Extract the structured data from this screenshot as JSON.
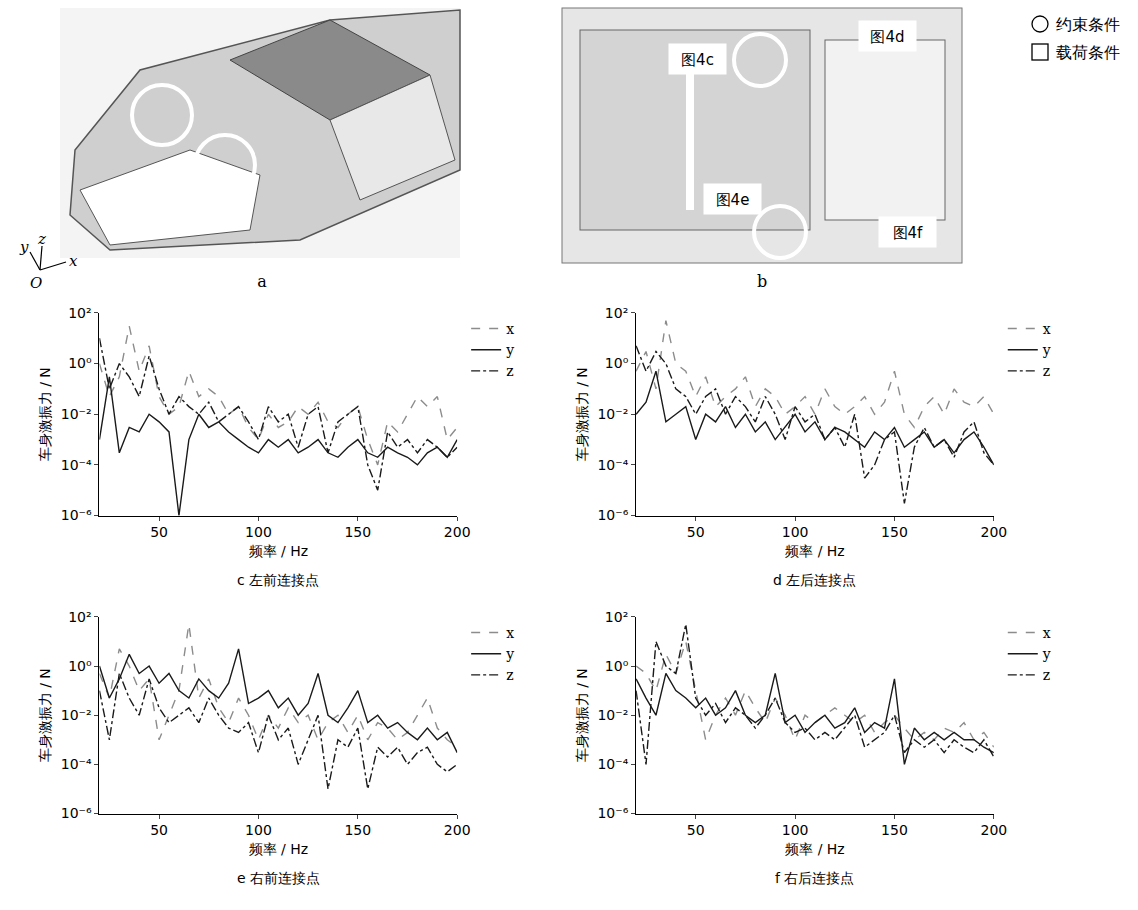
{
  "figure": {
    "panel_a": {
      "label": "a",
      "axes": [
        "y",
        "z",
        "x",
        "O"
      ]
    },
    "panel_b": {
      "label": "b",
      "boxes": [
        "图4c",
        "图4d",
        "图4e",
        "图4f"
      ],
      "legend": [
        {
          "marker": "circle",
          "text": "约束条件"
        },
        {
          "marker": "square",
          "text": "载荷条件"
        }
      ]
    }
  },
  "chart_data": [
    {
      "type": "line",
      "title": "c 左前连接点",
      "x_label": "频率 / Hz",
      "y_label": "车身激振力 / N",
      "log": "y",
      "grid": false,
      "legend": "right",
      "xlim": [
        20,
        200
      ],
      "xticks": [
        50,
        100,
        150,
        200
      ],
      "ylim": [
        1e-06,
        100
      ],
      "yticks": [
        {
          "value": 1e-06,
          "label": "10⁻⁶"
        },
        {
          "value": 0.0001,
          "label": "10⁻⁴"
        },
        {
          "value": 0.01,
          "label": "10⁻²"
        },
        {
          "value": 1,
          "label": "10⁰"
        },
        {
          "value": 100,
          "label": "10²"
        }
      ],
      "x": [
        20,
        25,
        30,
        35,
        40,
        45,
        50,
        55,
        60,
        65,
        70,
        75,
        80,
        85,
        90,
        95,
        100,
        105,
        110,
        115,
        120,
        125,
        130,
        135,
        140,
        145,
        150,
        155,
        160,
        165,
        170,
        175,
        180,
        185,
        190,
        195,
        200
      ],
      "series": [
        {
          "name": "x",
          "color": "#8c8c8c",
          "line_style": "dashed",
          "values": [
            1,
            0.05,
            0.3,
            30,
            0.5,
            5,
            0.05,
            0.01,
            0.02,
            0.5,
            0.05,
            0.1,
            0.05,
            0.01,
            0.02,
            0.003,
            0.001,
            0.01,
            0.003,
            0.005,
            0.02,
            0.01,
            0.03,
            0.005,
            0.003,
            0.01,
            0.02,
            0.001,
            0.0001,
            0.005,
            0.002,
            0.01,
            0.05,
            0.02,
            0.05,
            0.001,
            0.003
          ]
        },
        {
          "name": "y",
          "color": "#1a1a1a",
          "line_style": "solid",
          "values": [
            0.001,
            0.3,
            0.0003,
            0.003,
            0.002,
            0.01,
            0.005,
            0.002,
            1e-06,
            0.001,
            0.01,
            0.003,
            0.005,
            0.002,
            0.001,
            0.0005,
            0.0003,
            0.001,
            0.0005,
            0.001,
            0.0003,
            0.0005,
            0.001,
            0.0003,
            0.0002,
            0.0005,
            0.001,
            0.0003,
            0.0002,
            0.0005,
            0.0003,
            0.0002,
            0.0001,
            0.0003,
            0.0005,
            0.0002,
            0.001
          ]
        },
        {
          "name": "z",
          "color": "#1a1a1a",
          "line_style": "dashdot",
          "values": [
            10,
            0.1,
            1,
            0.3,
            0.05,
            2,
            0.1,
            0.01,
            0.05,
            0.02,
            0.01,
            0.03,
            0.005,
            0.01,
            0.02,
            0.005,
            0.001,
            0.02,
            0.005,
            0.01,
            0.0005,
            0.01,
            0.02,
            0.0003,
            0.005,
            0.01,
            0.02,
            0.0001,
            1e-05,
            0.002,
            0.0005,
            0.001,
            0.0003,
            0.001,
            0.0005,
            0.0002,
            0.0005
          ]
        }
      ]
    },
    {
      "type": "line",
      "title": "d 左后连接点",
      "x_label": "频率 / Hz",
      "y_label": "车身激振力 / N",
      "log": "y",
      "grid": false,
      "legend": "right",
      "xlim": [
        20,
        200
      ],
      "xticks": [
        50,
        100,
        150,
        200
      ],
      "ylim": [
        1e-06,
        100
      ],
      "yticks": [
        {
          "value": 1e-06,
          "label": "10⁻⁶"
        },
        {
          "value": 0.0001,
          "label": "10⁻⁴"
        },
        {
          "value": 0.01,
          "label": "10⁻²"
        },
        {
          "value": 1,
          "label": "10⁰"
        },
        {
          "value": 100,
          "label": "10²"
        }
      ],
      "x": [
        20,
        25,
        30,
        35,
        40,
        45,
        50,
        55,
        60,
        65,
        70,
        75,
        80,
        85,
        90,
        95,
        100,
        105,
        110,
        115,
        120,
        125,
        130,
        135,
        140,
        145,
        150,
        155,
        160,
        165,
        170,
        175,
        180,
        185,
        190,
        195,
        200
      ],
      "series": [
        {
          "name": "x",
          "color": "#8c8c8c",
          "line_style": "dashed",
          "values": [
            0.5,
            3,
            0.1,
            50,
            1,
            0.5,
            0.05,
            0.3,
            0.02,
            0.05,
            0.1,
            0.3,
            0.02,
            0.1,
            0.05,
            0.01,
            0.02,
            0.05,
            0.01,
            0.1,
            0.02,
            0.01,
            0.02,
            0.05,
            0.01,
            0.03,
            0.5,
            0.01,
            0.003,
            0.02,
            0.05,
            0.01,
            0.1,
            0.03,
            0.02,
            0.05,
            0.01
          ]
        },
        {
          "name": "y",
          "color": "#1a1a1a",
          "line_style": "solid",
          "values": [
            0.01,
            0.03,
            0.5,
            0.005,
            0.01,
            0.02,
            0.001,
            0.01,
            0.005,
            0.02,
            0.003,
            0.01,
            0.002,
            0.005,
            0.001,
            0.003,
            0.01,
            0.002,
            0.005,
            0.001,
            0.003,
            0.002,
            0.001,
            0.0005,
            0.002,
            0.001,
            0.003,
            0.0005,
            0.001,
            0.002,
            0.0005,
            0.001,
            0.0003,
            0.001,
            0.002,
            0.0005,
            0.0001
          ]
        },
        {
          "name": "z",
          "color": "#1a1a1a",
          "line_style": "dashdot",
          "values": [
            5,
            0.5,
            3,
            1,
            0.1,
            0.05,
            0.01,
            0.05,
            0.1,
            0.01,
            0.05,
            0.02,
            0.005,
            0.05,
            0.01,
            0.001,
            0.02,
            0.005,
            0.01,
            0.001,
            0.003,
            0.0005,
            0.01,
            3e-05,
            0.0001,
            0.001,
            0.002,
            3e-06,
            0.0005,
            0.003,
            0.0005,
            0.001,
            0.0002,
            0.002,
            0.005,
            0.0003,
            0.0001
          ]
        }
      ]
    },
    {
      "type": "line",
      "title": "e 右前连接点",
      "x_label": "频率 / Hz",
      "y_label": "车身激振力 / N",
      "log": "y",
      "grid": false,
      "legend": "right",
      "xlim": [
        20,
        200
      ],
      "xticks": [
        50,
        100,
        150,
        200
      ],
      "ylim": [
        1e-06,
        100
      ],
      "yticks": [
        {
          "value": 1e-06,
          "label": "10⁻⁶"
        },
        {
          "value": 0.0001,
          "label": "10⁻⁴"
        },
        {
          "value": 0.01,
          "label": "10⁻²"
        },
        {
          "value": 1,
          "label": "10⁰"
        },
        {
          "value": 100,
          "label": "10²"
        }
      ],
      "x": [
        20,
        25,
        30,
        35,
        40,
        45,
        50,
        55,
        60,
        65,
        70,
        75,
        80,
        85,
        90,
        95,
        100,
        105,
        110,
        115,
        120,
        125,
        130,
        135,
        140,
        145,
        150,
        155,
        160,
        165,
        170,
        175,
        180,
        185,
        190,
        195,
        200
      ],
      "series": [
        {
          "name": "x",
          "color": "#8c8c8c",
          "line_style": "dashed",
          "values": [
            0.5,
            0.05,
            5,
            1,
            0.1,
            0.3,
            0.001,
            0.01,
            0.1,
            50,
            0.05,
            0.3,
            0.02,
            0.005,
            0.05,
            0.01,
            0.001,
            0.01,
            0.003,
            0.02,
            0.005,
            0.01,
            0.001,
            0.005,
            0.01,
            0.002,
            0.01,
            0.001,
            0.005,
            0.003,
            0.001,
            0.002,
            0.01,
            0.05,
            0.003,
            0.001,
            0.0005
          ]
        },
        {
          "name": "y",
          "color": "#1a1a1a",
          "line_style": "solid",
          "values": [
            1,
            0.05,
            0.3,
            3,
            0.5,
            1,
            0.2,
            0.5,
            0.1,
            0.05,
            0.3,
            0.1,
            0.05,
            0.2,
            5,
            0.03,
            0.05,
            0.1,
            0.02,
            0.05,
            0.01,
            0.03,
            0.5,
            0.01,
            0.005,
            0.02,
            0.1,
            0.005,
            0.01,
            0.003,
            0.005,
            0.002,
            0.001,
            0.003,
            0.001,
            0.002,
            0.0003
          ]
        },
        {
          "name": "z",
          "color": "#1a1a1a",
          "line_style": "dashdot",
          "values": [
            0.1,
            0.001,
            0.5,
            0.05,
            0.01,
            0.3,
            0.02,
            0.005,
            0.01,
            0.02,
            0.005,
            0.05,
            0.01,
            0.003,
            0.002,
            0.005,
            0.0003,
            0.01,
            0.001,
            0.003,
            0.0001,
            0.001,
            0.01,
            1e-05,
            0.001,
            0.0005,
            0.003,
            1e-05,
            0.0005,
            0.0002,
            0.0005,
            0.0001,
            0.0003,
            0.0005,
            0.0001,
            5e-05,
            0.0001
          ]
        }
      ]
    },
    {
      "type": "line",
      "title": "f 右后连接点",
      "x_label": "频率 / Hz",
      "y_label": "车身激振力 / N",
      "log": "y",
      "grid": false,
      "legend": "right",
      "xlim": [
        20,
        200
      ],
      "xticks": [
        50,
        100,
        150,
        200
      ],
      "ylim": [
        1e-06,
        100
      ],
      "yticks": [
        {
          "value": 1e-06,
          "label": "10⁻⁶"
        },
        {
          "value": 0.0001,
          "label": "10⁻⁴"
        },
        {
          "value": 0.01,
          "label": "10⁻²"
        },
        {
          "value": 1,
          "label": "10⁰"
        },
        {
          "value": 100,
          "label": "10²"
        }
      ],
      "x": [
        20,
        25,
        30,
        35,
        40,
        45,
        50,
        55,
        60,
        65,
        70,
        75,
        80,
        85,
        90,
        95,
        100,
        105,
        110,
        115,
        120,
        125,
        130,
        135,
        140,
        145,
        150,
        155,
        160,
        165,
        170,
        175,
        180,
        185,
        190,
        195,
        200
      ],
      "series": [
        {
          "name": "x",
          "color": "#8c8c8c",
          "line_style": "dashed",
          "values": [
            1,
            0.5,
            0.1,
            3,
            0.5,
            10,
            0.1,
            0.001,
            0.01,
            0.05,
            0.01,
            0.1,
            0.02,
            0.005,
            0.05,
            0.01,
            0.001,
            0.01,
            0.005,
            0.01,
            0.02,
            0.01,
            0.005,
            0.01,
            0.002,
            0.005,
            0.01,
            0.003,
            0.001,
            0.002,
            0.001,
            0.003,
            0.002,
            0.005,
            0.001,
            0.002,
            0.0005
          ]
        },
        {
          "name": "y",
          "color": "#1a1a1a",
          "line_style": "solid",
          "values": [
            0.3,
            0.05,
            0.01,
            0.5,
            0.1,
            0.05,
            0.02,
            0.05,
            0.01,
            0.02,
            0.1,
            0.01,
            0.005,
            0.01,
            0.5,
            0.005,
            0.01,
            0.002,
            0.005,
            0.01,
            0.003,
            0.005,
            0.02,
            0.002,
            0.005,
            0.003,
            0.3,
            0.0001,
            0.003,
            0.001,
            0.002,
            0.001,
            0.002,
            0.001,
            0.001,
            0.0005,
            0.0003
          ]
        },
        {
          "name": "z",
          "color": "#1a1a1a",
          "line_style": "dashdot",
          "values": [
            0.1,
            0.0001,
            10,
            1,
            0.5,
            50,
            0.05,
            0.01,
            0.03,
            0.005,
            0.02,
            0.01,
            0.003,
            0.01,
            0.05,
            0.005,
            0.002,
            0.003,
            0.001,
            0.002,
            0.001,
            0.003,
            0.01,
            0.0005,
            0.001,
            0.002,
            0.01,
            0.0003,
            0.001,
            0.0005,
            0.001,
            0.0003,
            0.001,
            0.0005,
            0.0003,
            0.001,
            0.0002
          ]
        }
      ]
    }
  ]
}
